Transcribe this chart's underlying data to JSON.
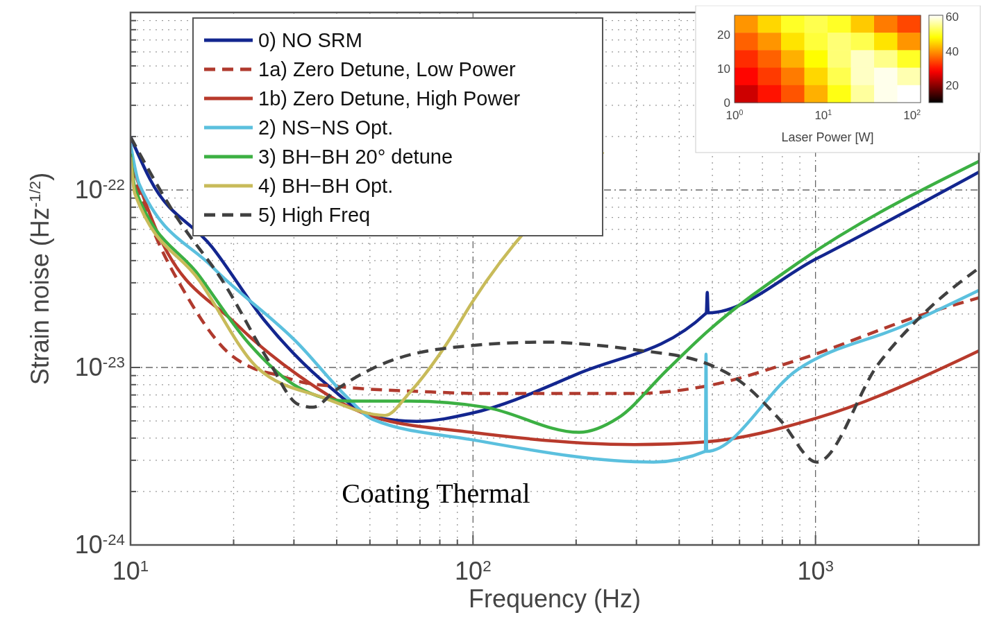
{
  "chart_data": [
    {
      "type": "line",
      "xlabel": "Frequency (Hz)",
      "ylabel": "Strain noise (Hz$^{-1/2}$)",
      "log": "xy",
      "xlim": [
        10,
        3000
      ],
      "ylim": [
        1e-24,
        1e-21
      ],
      "xticks": [
        {
          "value": 10,
          "label": "10$^{1}$"
        },
        {
          "value": 20,
          "label": null
        },
        {
          "value": 30,
          "label": null
        },
        {
          "value": 40,
          "label": null
        },
        {
          "value": 50,
          "label": null
        },
        {
          "value": 60,
          "label": null
        },
        {
          "value": 70,
          "label": null
        },
        {
          "value": 80,
          "label": null
        },
        {
          "value": 90,
          "label": null
        },
        {
          "value": 100,
          "label": "10$^{2}$"
        },
        {
          "value": 200,
          "label": null
        },
        {
          "value": 300,
          "label": null
        },
        {
          "value": 400,
          "label": null
        },
        {
          "value": 500,
          "label": null
        },
        {
          "value": 600,
          "label": null
        },
        {
          "value": 700,
          "label": null
        },
        {
          "value": 800,
          "label": null
        },
        {
          "value": 900,
          "label": null
        },
        {
          "value": 1000,
          "label": "10$^{3}$"
        },
        {
          "value": 2000,
          "label": null
        }
      ],
      "yticks": [
        {
          "value": 1e-24,
          "label": "10$^{-24}$"
        },
        {
          "value": 2e-24,
          "label": null
        },
        {
          "value": 3e-24,
          "label": null
        },
        {
          "value": 4e-24,
          "label": null
        },
        {
          "value": 5e-24,
          "label": null
        },
        {
          "value": 6e-24,
          "label": null
        },
        {
          "value": 7e-24,
          "label": null
        },
        {
          "value": 8e-24,
          "label": null
        },
        {
          "value": 9e-24,
          "label": null
        },
        {
          "value": 1e-23,
          "label": "10$^{-23}$"
        },
        {
          "value": 2e-23,
          "label": null
        },
        {
          "value": 3e-23,
          "label": null
        },
        {
          "value": 4e-23,
          "label": null
        },
        {
          "value": 5e-23,
          "label": null
        },
        {
          "value": 6e-23,
          "label": null
        },
        {
          "value": 7e-23,
          "label": null
        },
        {
          "value": 8e-23,
          "label": null
        },
        {
          "value": 9e-23,
          "label": null
        },
        {
          "value": 1e-22,
          "label": "10$^{-22}$"
        },
        {
          "value": 2e-22,
          "label": null
        },
        {
          "value": 3e-22,
          "label": null
        },
        {
          "value": 4e-22,
          "label": null
        },
        {
          "value": 5e-22,
          "label": null
        },
        {
          "value": 6e-22,
          "label": null
        },
        {
          "value": 7e-22,
          "label": null
        },
        {
          "value": 8e-22,
          "label": null
        },
        {
          "value": 9e-22,
          "label": null
        }
      ],
      "grid": true,
      "legend": "top left",
      "annotations": [
        "Coating Thermal"
      ],
      "series": [
        {
          "name": "0) NO SRM",
          "color": "#13268f",
          "line_style": "solid",
          "x": [
            10,
            11.4,
            17.3,
            24.5,
            38.3,
            50.9,
            68.5,
            99,
            204,
            480,
            483,
            486,
            1009,
            3000
          ],
          "values": [
            1.99e-22,
            1.15e-22,
            4.77e-23,
            1.86e-23,
            7.72e-24,
            5.29e-24,
            4.97e-24,
            5.52e-24,
            9.27e-24,
            2.03e-23,
            2.65e-23,
            2.03e-23,
            4.11e-23,
            1.26e-22
          ]
        },
        {
          "name": "1a) Zero Detune, Low Power",
          "color": "#b03a2e",
          "line_style": "dashed",
          "x": [
            10,
            11.4,
            14.6,
            19.4,
            22.9,
            27,
            30.9,
            43,
            71.2,
            108.7,
            296,
            479,
            885,
            2130,
            3000
          ],
          "values": [
            1.34e-22,
            6.55e-23,
            2.53e-23,
            1.2e-23,
            9.87e-24,
            9.03e-24,
            8.36e-24,
            7.72e-24,
            7.31e-24,
            7.13e-24,
            7.13e-24,
            7.85e-24,
            1.1e-23,
            2.03e-23,
            2.47e-23
          ]
        },
        {
          "name": "1b) Zero Detune, High Power",
          "color": "#b83a2c",
          "line_style": "solid",
          "x": [
            10,
            11.9,
            20.4,
            30.9,
            50.9,
            99,
            296,
            479,
            1009,
            3000
          ],
          "values": [
            1.46e-22,
            5.94e-23,
            1.75e-23,
            9.03e-24,
            5.29e-24,
            4.31e-24,
            3.68e-24,
            3.81e-24,
            5.19e-24,
            1.24e-23
          ]
        },
        {
          "name": "2) NS−NS Opt.",
          "color": "#5bc0de",
          "line_style": "solid",
          "x": [
            10,
            10.6,
            17.3,
            30.9,
            43,
            50.9,
            99,
            337,
            477,
            479,
            481,
            885,
            1825,
            3000
          ],
          "values": [
            1.82e-22,
            1.08e-22,
            3.7e-23,
            1.36e-23,
            6.76e-24,
            5.1e-24,
            3.92e-24,
            2.93e-24,
            3.37e-24,
            1.19e-23,
            3.37e-24,
            9.71e-24,
            1.73e-23,
            2.72e-23
          ]
        },
        {
          "name": "3) BH−BH 20° detune",
          "color": "#3cb043",
          "line_style": "solid",
          "x": [
            10,
            10.3,
            15.9,
            22.2,
            30.9,
            43,
            65.4,
            108.7,
            204,
            265,
            369,
            483,
            885,
            3000
          ],
          "values": [
            1.6e-22,
            1.02e-22,
            3.27e-23,
            1.36e-23,
            7.72e-24,
            6.47e-24,
            6.47e-24,
            5.97e-24,
            4.31e-24,
            5.19e-24,
            9.71e-24,
            1.59e-23,
            3.86e-23,
            1.45e-22
          ]
        },
        {
          "name": "4) BH−BH Opt.",
          "color": "#c8bb5a",
          "line_style": "solid",
          "x": [
            10,
            10.3,
            15.9,
            23.6,
            36.6,
            55.3,
            65.4,
            83.8,
            99,
            240
          ],
          "values": [
            1.53e-22,
            9.49e-23,
            3.08e-23,
            9.87e-24,
            6.76e-24,
            5.37e-24,
            7.24e-24,
            1.36e-23,
            2.3e-23,
            1.64e-22
          ]
        },
        {
          "name": "5) High Freq",
          "color": "#404040",
          "line_style": "dashed",
          "x": [
            10,
            13.4,
            18.8,
            25.3,
            30.9,
            34.1,
            39.7,
            50.9,
            80,
            165,
            204,
            296,
            483,
            610,
            792,
            1009,
            1528,
            2130,
            3000
          ],
          "values": [
            1.99e-22,
            7.41e-23,
            2.96e-23,
            1.09e-23,
            6.19e-24,
            5.97e-24,
            7.45e-24,
            9.87e-24,
            1.27e-23,
            1.39e-23,
            1.36e-23,
            1.26e-23,
            1.05e-23,
            8.2e-24,
            5.01e-24,
            2.93e-24,
            1.05e-23,
            2.12e-23,
            3.63e-23
          ]
        }
      ]
    },
    {
      "type": "heatmap",
      "xlabel": "Laser Power [W]",
      "log": "x",
      "xlim": [
        1,
        125
      ],
      "ylim": [
        0,
        25.8
      ],
      "xticks": [
        {
          "value": 1,
          "label": "10$^{0}$"
        },
        {
          "value": 10,
          "label": "10$^{1}$"
        },
        {
          "value": 100,
          "label": "10$^{2}$"
        }
      ],
      "yticks": [
        0,
        10,
        20
      ],
      "cells": [
        [
          40,
          45,
          50,
          52,
          50,
          44,
          38,
          34
        ],
        [
          36,
          40,
          46,
          51,
          54,
          52,
          46,
          40
        ],
        [
          32,
          36,
          42,
          48,
          54,
          58,
          55,
          50
        ],
        [
          29,
          33,
          38,
          45,
          52,
          58,
          60,
          57
        ],
        [
          25,
          30,
          35,
          42,
          49,
          56,
          60,
          61
        ]
      ],
      "clim": [
        10,
        61
      ],
      "cticks": [
        20,
        40,
        60
      ]
    }
  ]
}
